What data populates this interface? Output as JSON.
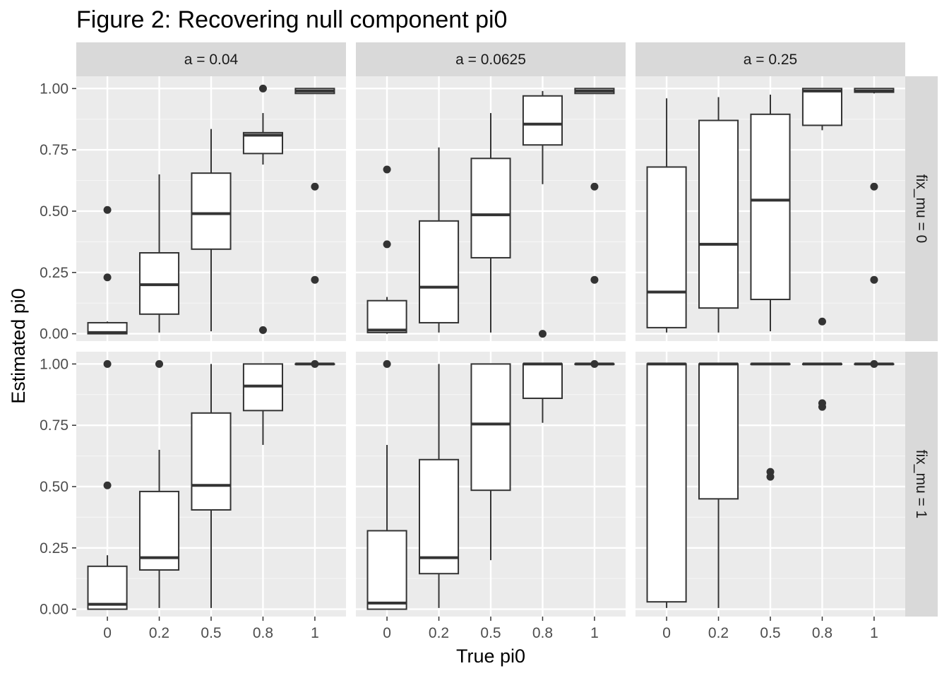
{
  "chart_data": {
    "type": "boxplot",
    "title": "Figure 2: Recovering null component pi0",
    "xlabel": "True pi0",
    "ylabel": "Estimated pi0",
    "categories": [
      "0",
      "0.2",
      "0.5",
      "0.8",
      "1"
    ],
    "ylim": [
      -0.03,
      1.05
    ],
    "y_ticks": [
      0.0,
      0.25,
      0.5,
      0.75,
      1.0
    ],
    "y_tick_labels": [
      "0.00",
      "0.25",
      "0.50",
      "0.75",
      "1.00"
    ],
    "grid": true,
    "facet_cols": [
      "a = 0.04",
      "a = 0.0625",
      "a = 0.25"
    ],
    "facet_rows": [
      "fix_mu = 0",
      "fix_mu = 1"
    ],
    "panels": [
      {
        "row": 0,
        "col": 0,
        "boxes": [
          {
            "min": 0.0,
            "q1": 0.0,
            "median": 0.005,
            "q3": 0.045,
            "max": 0.05,
            "outliers": [
              0.505,
              0.23
            ]
          },
          {
            "min": 0.005,
            "q1": 0.08,
            "median": 0.2,
            "q3": 0.33,
            "max": 0.65,
            "outliers": []
          },
          {
            "min": 0.01,
            "q1": 0.345,
            "median": 0.49,
            "q3": 0.655,
            "max": 0.835,
            "outliers": []
          },
          {
            "min": 0.69,
            "q1": 0.735,
            "median": 0.81,
            "q3": 0.82,
            "max": 0.9,
            "outliers": [
              1.0,
              0.015
            ]
          },
          {
            "min": 0.98,
            "q1": 0.98,
            "median": 0.99,
            "q3": 1.0,
            "max": 1.0,
            "outliers": [
              0.6,
              0.22
            ]
          }
        ]
      },
      {
        "row": 0,
        "col": 1,
        "boxes": [
          {
            "min": 0.0,
            "q1": 0.005,
            "median": 0.015,
            "q3": 0.135,
            "max": 0.15,
            "outliers": [
              0.67,
              0.365
            ]
          },
          {
            "min": 0.005,
            "q1": 0.045,
            "median": 0.19,
            "q3": 0.46,
            "max": 0.76,
            "outliers": []
          },
          {
            "min": 0.005,
            "q1": 0.31,
            "median": 0.485,
            "q3": 0.715,
            "max": 0.9,
            "outliers": []
          },
          {
            "min": 0.61,
            "q1": 0.77,
            "median": 0.855,
            "q3": 0.97,
            "max": 0.99,
            "outliers": [
              0.0
            ]
          },
          {
            "min": 0.98,
            "q1": 0.98,
            "median": 0.99,
            "q3": 1.0,
            "max": 1.0,
            "outliers": [
              0.6,
              0.22
            ]
          }
        ]
      },
      {
        "row": 0,
        "col": 2,
        "boxes": [
          {
            "min": 0.005,
            "q1": 0.025,
            "median": 0.17,
            "q3": 0.68,
            "max": 0.96,
            "outliers": []
          },
          {
            "min": 0.005,
            "q1": 0.105,
            "median": 0.365,
            "q3": 0.87,
            "max": 0.965,
            "outliers": []
          },
          {
            "min": 0.01,
            "q1": 0.14,
            "median": 0.545,
            "q3": 0.895,
            "max": 0.975,
            "outliers": []
          },
          {
            "min": 0.83,
            "q1": 0.85,
            "median": 0.99,
            "q3": 1.0,
            "max": 1.0,
            "outliers": [
              0.05
            ]
          },
          {
            "min": 0.98,
            "q1": 0.985,
            "median": 0.99,
            "q3": 1.0,
            "max": 1.0,
            "outliers": [
              0.6,
              0.22
            ]
          }
        ]
      },
      {
        "row": 1,
        "col": 0,
        "boxes": [
          {
            "min": 0.0,
            "q1": 0.0,
            "median": 0.02,
            "q3": 0.175,
            "max": 0.22,
            "outliers": [
              1.0,
              0.505
            ]
          },
          {
            "min": 0.005,
            "q1": 0.16,
            "median": 0.21,
            "q3": 0.48,
            "max": 0.65,
            "outliers": [
              1.0
            ]
          },
          {
            "min": 0.005,
            "q1": 0.405,
            "median": 0.505,
            "q3": 0.8,
            "max": 1.0,
            "outliers": []
          },
          {
            "min": 0.67,
            "q1": 0.81,
            "median": 0.91,
            "q3": 1.0,
            "max": 1.0,
            "outliers": []
          },
          {
            "min": 1.0,
            "q1": 1.0,
            "median": 1.0,
            "q3": 1.0,
            "max": 1.0,
            "outliers": [
              1.0
            ]
          }
        ]
      },
      {
        "row": 1,
        "col": 1,
        "boxes": [
          {
            "min": 0.0,
            "q1": 0.0,
            "median": 0.025,
            "q3": 0.32,
            "max": 0.67,
            "outliers": [
              1.0
            ]
          },
          {
            "min": 0.005,
            "q1": 0.145,
            "median": 0.21,
            "q3": 0.61,
            "max": 1.0,
            "outliers": []
          },
          {
            "min": 0.2,
            "q1": 0.485,
            "median": 0.755,
            "q3": 1.0,
            "max": 1.0,
            "outliers": []
          },
          {
            "min": 0.76,
            "q1": 0.86,
            "median": 1.0,
            "q3": 1.0,
            "max": 1.0,
            "outliers": []
          },
          {
            "min": 1.0,
            "q1": 1.0,
            "median": 1.0,
            "q3": 1.0,
            "max": 1.0,
            "outliers": [
              1.0
            ]
          }
        ]
      },
      {
        "row": 1,
        "col": 2,
        "boxes": [
          {
            "min": 0.005,
            "q1": 0.03,
            "median": 1.0,
            "q3": 1.0,
            "max": 1.0,
            "outliers": []
          },
          {
            "min": 0.005,
            "q1": 0.45,
            "median": 1.0,
            "q3": 1.0,
            "max": 1.0,
            "outliers": []
          },
          {
            "min": 1.0,
            "q1": 1.0,
            "median": 1.0,
            "q3": 1.0,
            "max": 1.0,
            "outliers": [
              0.56,
              0.54
            ]
          },
          {
            "min": 1.0,
            "q1": 1.0,
            "median": 1.0,
            "q3": 1.0,
            "max": 1.0,
            "outliers": [
              0.84,
              0.825
            ]
          },
          {
            "min": 1.0,
            "q1": 1.0,
            "median": 1.0,
            "q3": 1.0,
            "max": 1.0,
            "outliers": [
              1.0
            ]
          }
        ]
      }
    ]
  }
}
